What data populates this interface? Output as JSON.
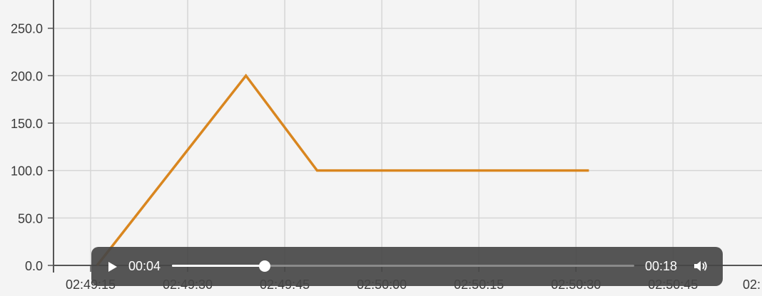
{
  "chart_data": {
    "type": "line",
    "y_ticks": [
      "0.0",
      "50.0",
      "100.0",
      "150.0",
      "200.0",
      "250.0"
    ],
    "y_values": [
      0,
      50,
      100,
      150,
      200,
      250
    ],
    "x_ticks": [
      "02:49:15",
      "02:49:30",
      "02:49:45",
      "02:50:00",
      "02:50:15",
      "02:50:30",
      "02:50:45",
      "02:"
    ],
    "x_tick_seconds": [
      15,
      30,
      45,
      60,
      75,
      90,
      105,
      120
    ],
    "ylim": [
      0,
      275
    ],
    "xlim_seconds": [
      7,
      122
    ],
    "grid": true,
    "series": [
      {
        "color": "#d9861f",
        "points": [
          {
            "t": "02:49:16",
            "y": 0
          },
          {
            "t": "02:49:39",
            "y": 200
          },
          {
            "t": "02:49:50",
            "y": 100
          },
          {
            "t": "02:50:32",
            "y": 100
          }
        ]
      }
    ]
  },
  "player": {
    "current_time": "00:04",
    "duration": "00:18",
    "progress": 0.2
  },
  "colors": {
    "line": "#d9861f",
    "grid": "#d6d6d6",
    "axis": "#555555"
  }
}
